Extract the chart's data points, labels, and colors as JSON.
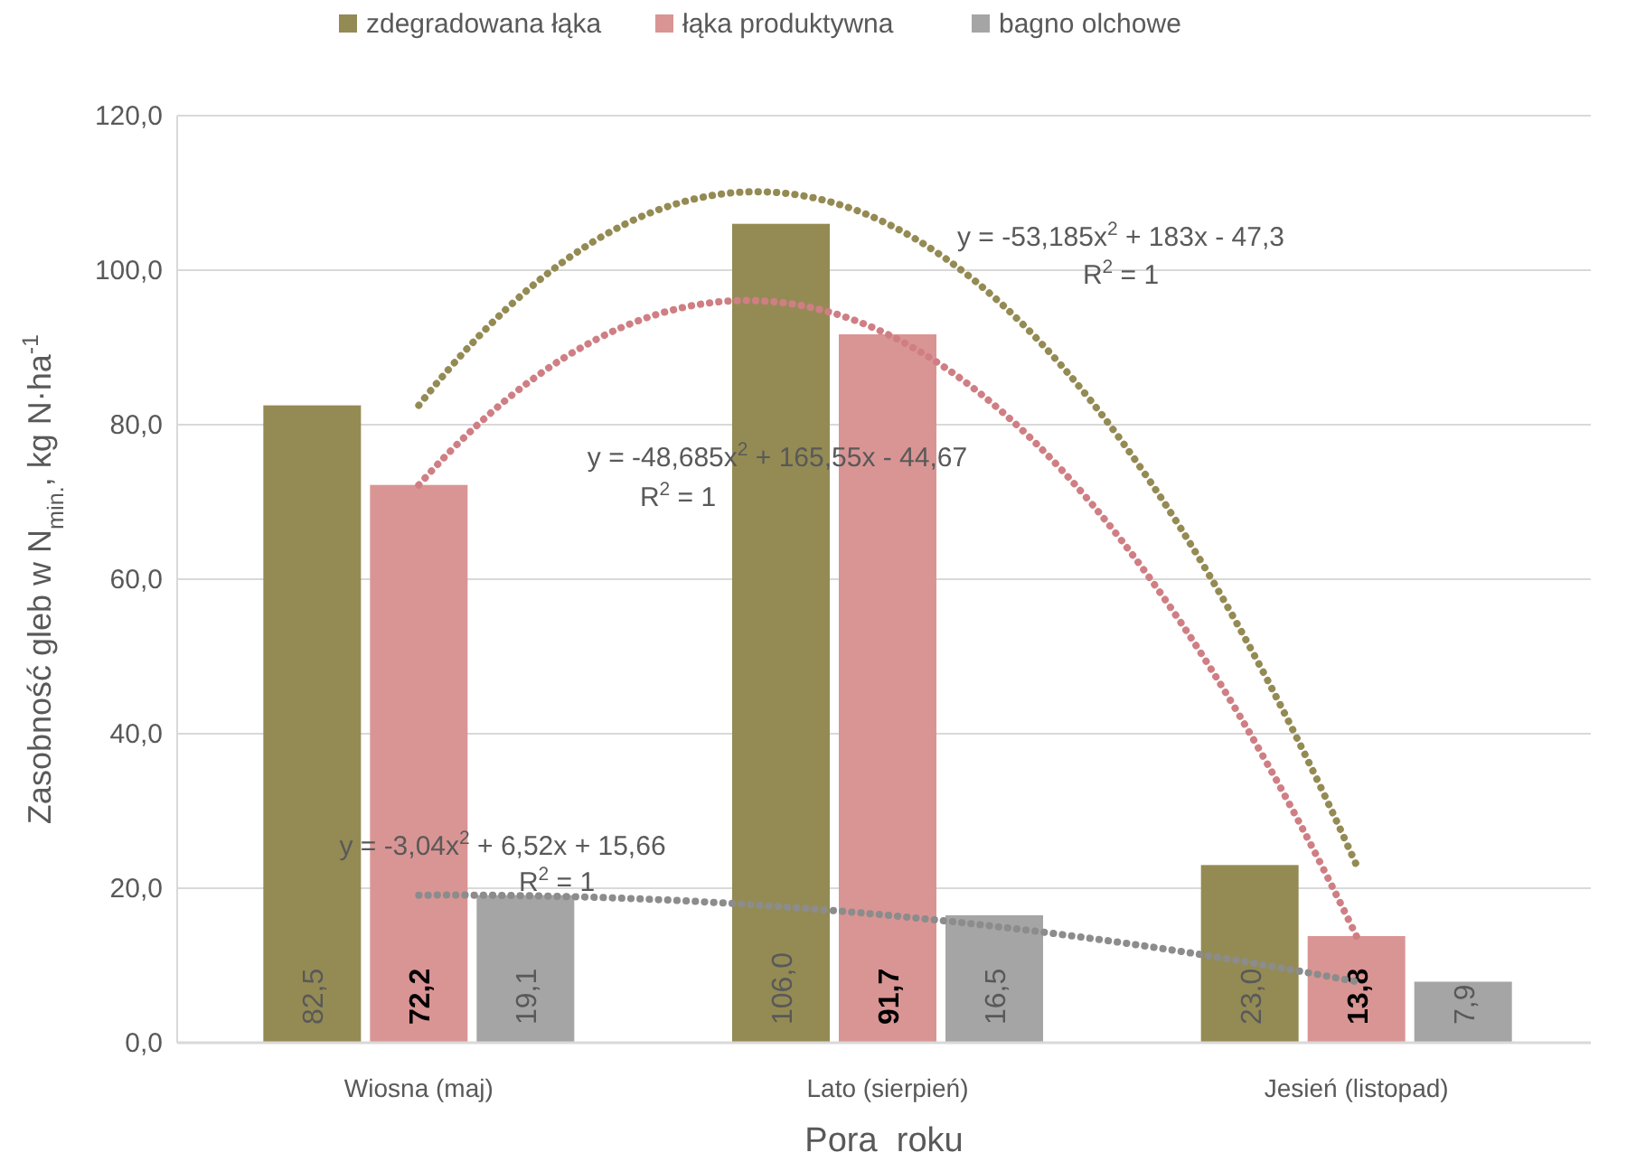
{
  "chart_data": {
    "type": "bar",
    "xlabel": "Pora  roku",
    "ylabel": "Zasobność gleb w N$_{min.}$, kg N·ha$^{-1}$",
    "categories": [
      "Wiosna (maj)",
      "Lato (sierpień)",
      "Jesień (listopad)"
    ],
    "series": [
      {
        "name": "zdegradowana łąka",
        "color": "#948b54",
        "values": [
          82.5,
          106.0,
          23.0
        ],
        "value_labels": [
          "82,5",
          "106,0",
          "23,0"
        ]
      },
      {
        "name": "łąka produktywna",
        "color": "#d99594",
        "values": [
          72.2,
          91.7,
          13.8
        ],
        "value_labels": [
          "72,2",
          "91,7",
          "13,8"
        ]
      },
      {
        "name": "bagno olchowe",
        "color": "#a5a5a5",
        "values": [
          19.1,
          16.5,
          7.9
        ],
        "value_labels": [
          "19,1",
          "16,5",
          "7,9"
        ]
      },
      {
        "type": "line",
        "color": "#948b54",
        "line_style": "dotted",
        "x": [
          "Wiosna (maj)",
          "Lato (sierpień)",
          "Jesień (listopad)"
        ],
        "values": [
          82.5,
          106.0,
          23.0
        ]
      },
      {
        "type": "line",
        "color": "#cf7f84",
        "line_style": "dotted",
        "x": [
          "Wiosna (maj)",
          "Lato (sierpień)",
          "Jesień (listopad)"
        ],
        "values": [
          72.2,
          91.7,
          13.8
        ]
      },
      {
        "type": "line",
        "color": "#8c8c8c",
        "line_style": "dotted",
        "x": [
          "Wiosna (maj)",
          "Lato (sierpień)",
          "Jesień (listopad)"
        ],
        "values": [
          19.1,
          16.5,
          7.9
        ]
      }
    ],
    "ylim": [
      0,
      120
    ],
    "yticks": [
      {
        "value": 0,
        "label": "0,0"
      },
      {
        "value": 20,
        "label": "20,0"
      },
      {
        "value": 40,
        "label": "40,0"
      },
      {
        "value": 60,
        "label": "60,0"
      },
      {
        "value": 80,
        "label": "80,0"
      },
      {
        "value": 100,
        "label": "100,0"
      },
      {
        "value": 120,
        "label": "120,0"
      }
    ],
    "grid": "y",
    "legend": "top",
    "annotations": [
      "y = -53,185x$^{2}$ + 183x - 47,3",
      "R$^{2}$ = 1",
      "y = -48,685x$^{2}$ + 165,55x - 44,67",
      "R$^{2}$ = 1",
      "y = -3,04x$^{2}$ + 6,52x + 15,66",
      "R$^{2}$ = 1"
    ]
  }
}
